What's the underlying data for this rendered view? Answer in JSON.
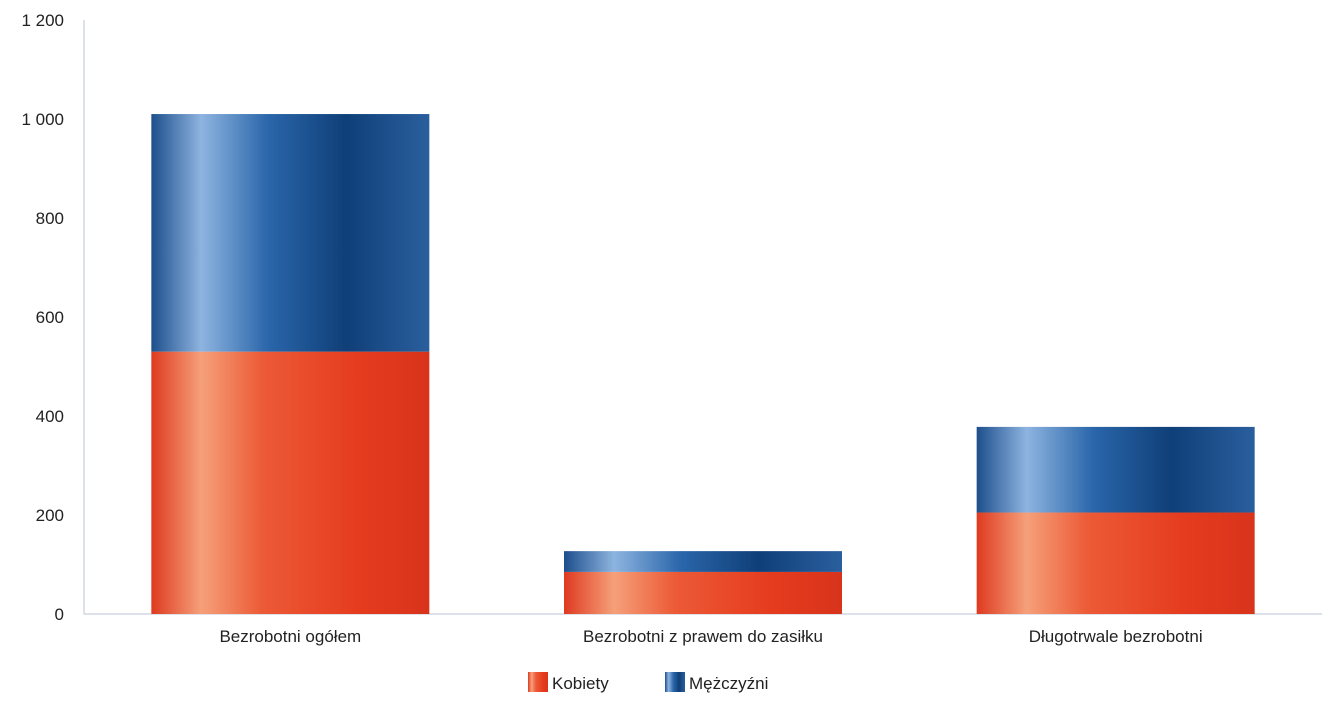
{
  "chart_data": {
    "type": "bar",
    "stacked": true,
    "title": "",
    "xlabel": "",
    "ylabel": "",
    "ylim": [
      0,
      1200
    ],
    "yticks": [
      0,
      200,
      400,
      600,
      800,
      1000,
      1200
    ],
    "ytick_labels": [
      "0",
      "200",
      "400",
      "600",
      "800",
      "1 000",
      "1 200"
    ],
    "grid": false,
    "legend": "bottom",
    "categories": [
      "Bezrobotni ogółem",
      "Bezrobotni z prawem do zasiłku",
      "Długotrwale bezrobotni"
    ],
    "series": [
      {
        "name": "Kobiety",
        "values": [
          530,
          85,
          205
        ],
        "color": "#e8452a"
      },
      {
        "name": "Mężczyźni",
        "values": [
          480,
          42,
          173
        ],
        "color": "#1f5c99"
      }
    ]
  }
}
